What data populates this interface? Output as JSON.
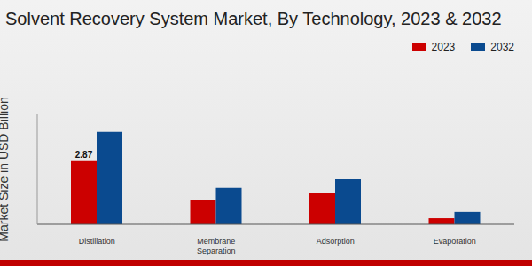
{
  "chart_data": {
    "type": "bar",
    "title": "Solvent Recovery System Market, By Technology, 2023 & 2032",
    "y_label": "Market Size in USD Billion",
    "categories": [
      "Distillation",
      "Membrane Separation",
      "Adsorption",
      "Evaporation"
    ],
    "series": [
      {
        "name": "2023",
        "color": "#cc0000",
        "values": [
          2.87,
          1.13,
          1.41,
          0.28
        ],
        "value_labels": [
          "2.87",
          null,
          null,
          null
        ]
      },
      {
        "name": "2032",
        "color": "#0a4a8f",
        "values": [
          4.2,
          1.66,
          2.06,
          0.57
        ]
      }
    ],
    "ylim": [
      0,
      5
    ],
    "tick_labels": "x",
    "legend": "top-right",
    "grid": false
  }
}
